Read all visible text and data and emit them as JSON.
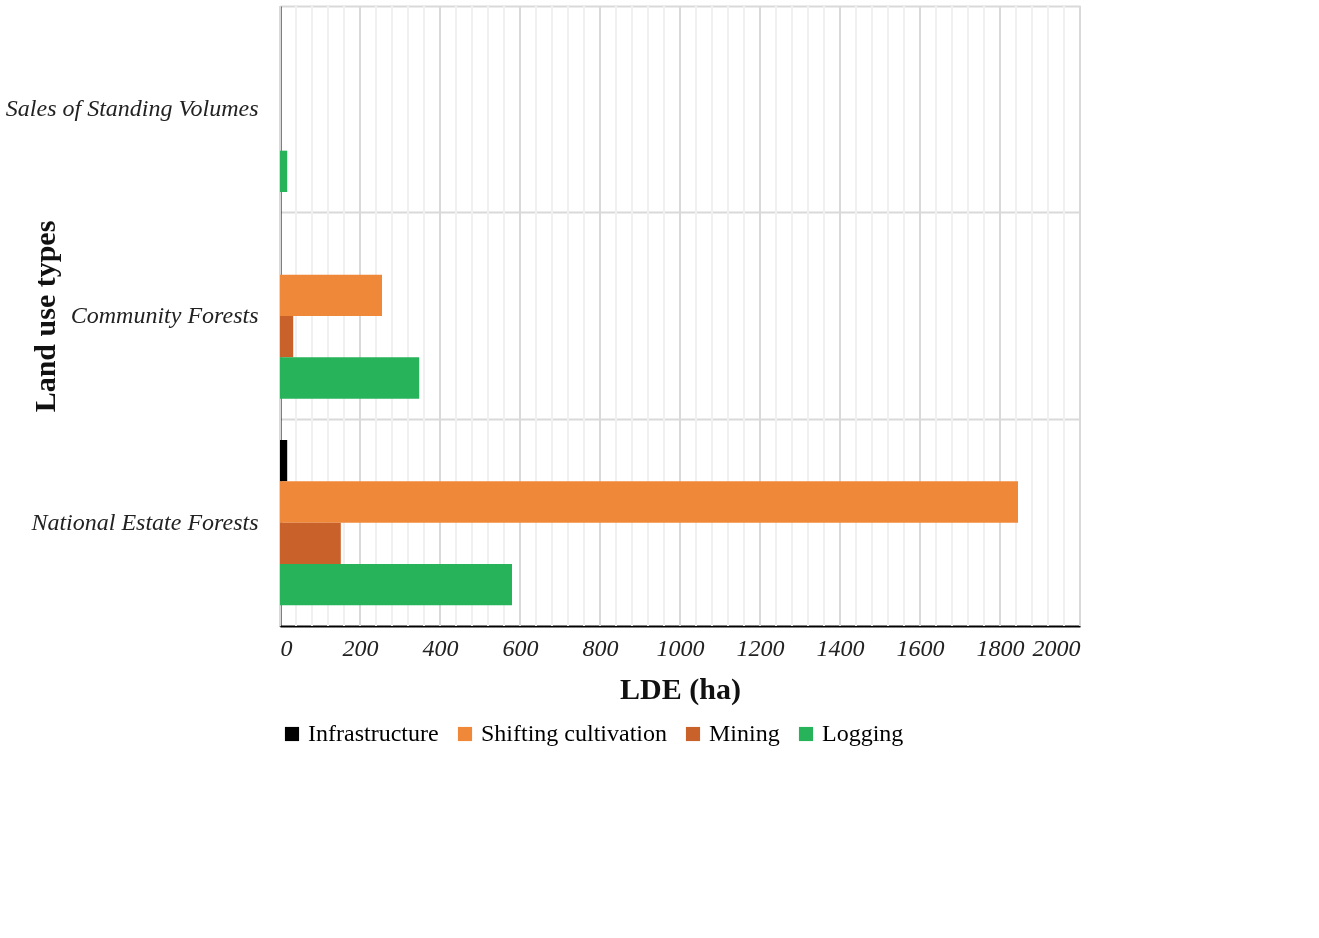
{
  "chart_data": {
    "type": "bar",
    "orientation": "horizontal",
    "xlabel": "LDE (ha)",
    "ylabel": "Land use types",
    "categories": [
      "Sales of Standing Volumes",
      "Community Forests",
      "National Estate Forests"
    ],
    "series": [
      {
        "name": "Infrastructure",
        "color": "#000000",
        "values": [
          0,
          0,
          18
        ]
      },
      {
        "name": "Shifting cultivation",
        "color": "#f0883a",
        "values": [
          0,
          255,
          1845
        ]
      },
      {
        "name": "Mining",
        "color": "#c9622a",
        "values": [
          0,
          33,
          152
        ]
      },
      {
        "name": "Logging",
        "color": "#27b35a",
        "values": [
          18,
          348,
          580
        ]
      }
    ],
    "xlim": [
      0,
      2000
    ],
    "xticks": [
      0,
      {
        "value": 40,
        "label": null
      },
      {
        "value": 80,
        "label": null
      },
      {
        "value": 120,
        "label": null
      },
      {
        "value": 160,
        "label": null
      },
      200,
      {
        "value": 240,
        "label": null
      },
      {
        "value": 280,
        "label": null
      },
      {
        "value": 320,
        "label": null
      },
      {
        "value": 360,
        "label": null
      },
      400,
      {
        "value": 440,
        "label": null
      },
      {
        "value": 480,
        "label": null
      },
      {
        "value": 520,
        "label": null
      },
      {
        "value": 560,
        "label": null
      },
      600,
      {
        "value": 640,
        "label": null
      },
      {
        "value": 680,
        "label": null
      },
      {
        "value": 720,
        "label": null
      },
      {
        "value": 760,
        "label": null
      },
      800,
      {
        "value": 840,
        "label": null
      },
      {
        "value": 880,
        "label": null
      },
      {
        "value": 920,
        "label": null
      },
      {
        "value": 960,
        "label": null
      },
      1000,
      {
        "value": 1040,
        "label": null
      },
      {
        "value": 1080,
        "label": null
      },
      {
        "value": 1120,
        "label": null
      },
      {
        "value": 1160,
        "label": null
      },
      1200,
      {
        "value": 1240,
        "label": null
      },
      {
        "value": 1280,
        "label": null
      },
      {
        "value": 1320,
        "label": null
      },
      {
        "value": 1360,
        "label": null
      },
      1400,
      {
        "value": 1440,
        "label": null
      },
      {
        "value": 1480,
        "label": null
      },
      {
        "value": 1520,
        "label": null
      },
      {
        "value": 1560,
        "label": null
      },
      1600,
      {
        "value": 1640,
        "label": null
      },
      {
        "value": 1680,
        "label": null
      },
      {
        "value": 1720,
        "label": null
      },
      {
        "value": 1760,
        "label": null
      },
      1800,
      {
        "value": 1840,
        "label": null
      },
      {
        "value": 1880,
        "label": null
      },
      {
        "value": 1920,
        "label": null
      },
      {
        "value": 1960,
        "label": null
      },
      2000
    ],
    "grid": true,
    "legend": "bottom"
  }
}
